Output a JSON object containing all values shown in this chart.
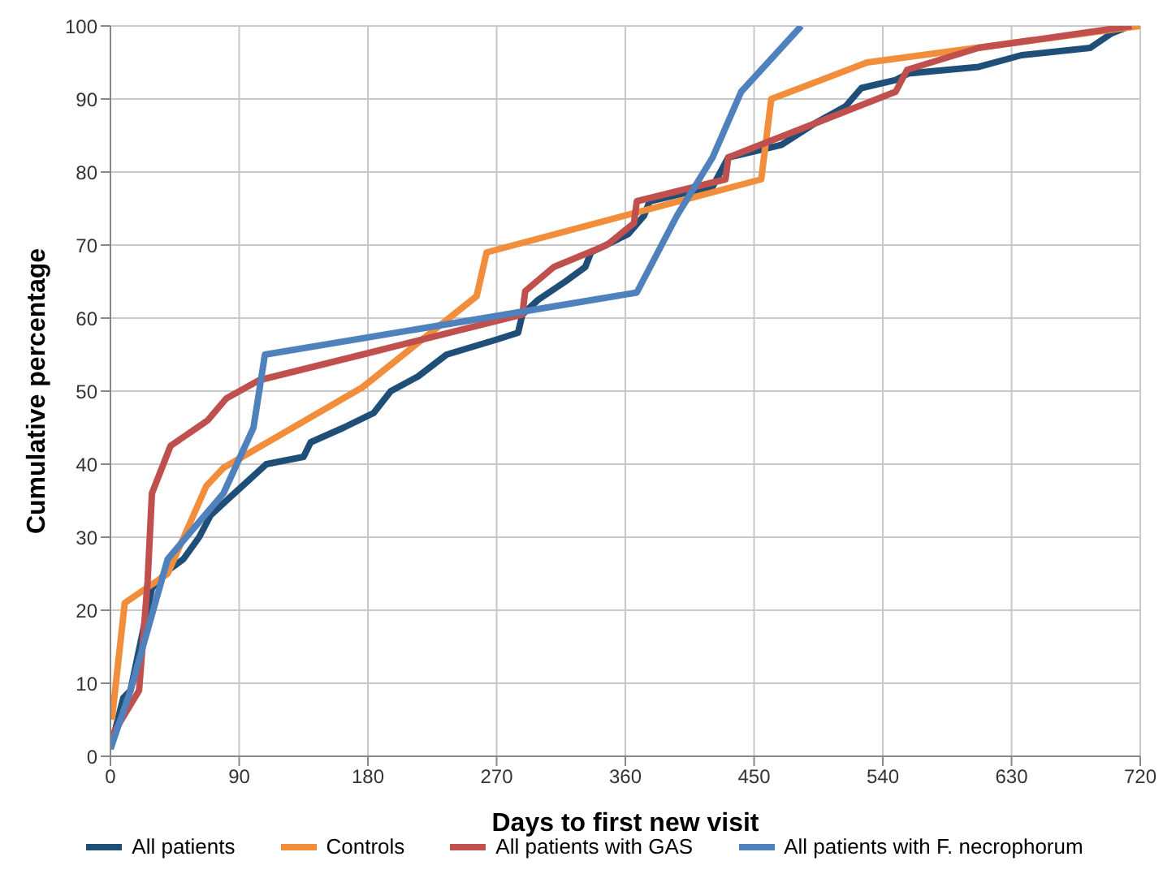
{
  "chart_data": {
    "type": "line",
    "xlabel": "Days to first new visit",
    "ylabel": "Cumulative percentage",
    "xlim": [
      0,
      720
    ],
    "xticks": [
      0,
      90,
      180,
      270,
      360,
      450,
      540,
      630,
      720
    ],
    "ylim": [
      0,
      100
    ],
    "yticks": [
      0,
      10,
      20,
      30,
      40,
      50,
      60,
      70,
      80,
      90,
      100
    ],
    "grid": true,
    "legend": "bottom",
    "marker": "none",
    "line_style": "solid",
    "series": [
      {
        "name": "All patients",
        "color": "#1f4e79",
        "x": [
          0,
          9,
          14,
          29,
          40,
          51,
          62,
          70,
          81,
          109,
          135,
          140,
          163,
          184,
          196,
          215,
          235,
          269,
          285,
          288,
          299,
          318,
          332,
          336,
          362,
          373,
          377,
          421,
          432,
          469,
          492,
          514,
          525,
          549,
          558,
          607,
          637,
          685,
          700,
          713
        ],
        "values": [
          1,
          8,
          9,
          23,
          25.4,
          27,
          30,
          33,
          35,
          40,
          41,
          43,
          45,
          47,
          50,
          52,
          55,
          57,
          58,
          60.5,
          62.5,
          65,
          67,
          69,
          71.5,
          74,
          76,
          78,
          82,
          83.7,
          86.6,
          89,
          91.5,
          92.6,
          93.5,
          94.4,
          96,
          97,
          99,
          100
        ]
      },
      {
        "name": "Controls",
        "color": "#f28e3b",
        "x": [
          1,
          10,
          40,
          67,
          79,
          176,
          256,
          263,
          455,
          462,
          529,
          720
        ],
        "values": [
          5,
          21,
          25,
          37,
          39.5,
          50.5,
          63,
          69,
          79,
          90,
          95,
          100
        ]
      },
      {
        "name": "All patients with GAS",
        "color": "#c0504d",
        "x": [
          0,
          20,
          26,
          29,
          35,
          42,
          68,
          81,
          104,
          176,
          288,
          290,
          310,
          347,
          366,
          368,
          430,
          432,
          549,
          557,
          607,
          714
        ],
        "values": [
          2.5,
          9,
          24,
          36,
          39,
          42.5,
          46,
          49,
          51.5,
          55,
          60.5,
          63.7,
          67,
          70,
          73,
          76,
          79,
          82,
          91,
          94,
          97,
          100
        ]
      },
      {
        "name": "All patients with F. necrophorum",
        "color": "#4f81bd",
        "x": [
          0,
          14,
          40,
          79,
          100,
          108,
          368,
          396,
          421,
          441,
          483
        ],
        "values": [
          1,
          9,
          27,
          36,
          45,
          55,
          63.5,
          74,
          82,
          91,
          100
        ]
      }
    ]
  }
}
